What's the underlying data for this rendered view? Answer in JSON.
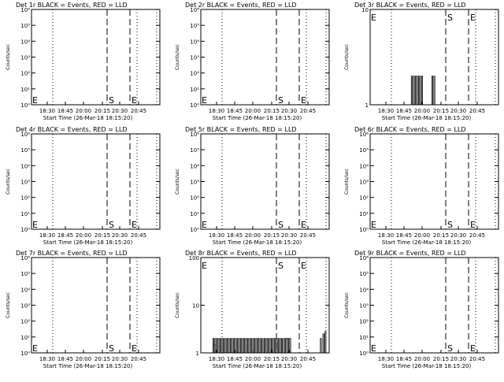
{
  "chart_data": [
    {
      "type": "line",
      "title": "Det 1r BLACK = Events, RED = LLD",
      "ylabel": "Counts/sec",
      "xlabel": "Start Time (26-Mar-18 18:15:20)",
      "x_tick_labels": [
        "18:30",
        "18:45",
        "20:00",
        "20:15",
        "20:30",
        "20:45"
      ],
      "y_scale": "log",
      "ylim": [
        1,
        1000000
      ],
      "y_tick_labels": [
        "10⁰",
        "10¹",
        "10²",
        "10³",
        "10⁴",
        "10⁵",
        "10⁶"
      ],
      "markers": [
        "E",
        "S",
        "E"
      ],
      "series": []
    },
    {
      "type": "line",
      "title": "Det 2r BLACK = Events, RED = LLD",
      "ylabel": "Counts/sec",
      "xlabel": "Start Time (26-Mar-18 18:15:20)",
      "x_tick_labels": [
        "18:30",
        "18:45",
        "20:00",
        "20:15",
        "20:30",
        "20:45"
      ],
      "y_scale": "log",
      "ylim": [
        1,
        1000000
      ],
      "y_tick_labels": [
        "10⁰",
        "10¹",
        "10²",
        "10³",
        "10⁴",
        "10⁵",
        "10⁶"
      ],
      "markers": [
        "E",
        "S",
        "E"
      ],
      "series": []
    },
    {
      "type": "line",
      "title": "Det 3r BLACK = Events, RED = LLD",
      "ylabel": "Counts/sec",
      "xlabel": "Start Time (26-Mar-18 18:15:20)",
      "x_tick_labels": [
        "18:30",
        "18:45",
        "20:00",
        "20:15",
        "20:30",
        "20:45"
      ],
      "y_scale": "log",
      "ylim": [
        1,
        10
      ],
      "y_tick_labels": [
        "1",
        "10"
      ],
      "markers": [
        "E",
        "S",
        "E"
      ],
      "series": [
        {
          "events": [
            [
              20.02,
              2
            ],
            [
              20.04,
              1
            ],
            [
              20.06,
              2
            ],
            [
              20.08,
              1
            ],
            [
              20.1,
              2
            ],
            [
              20.12,
              1
            ],
            [
              20.14,
              2
            ],
            [
              20.16,
              1
            ],
            [
              20.18,
              2
            ],
            [
              20.2,
              1
            ],
            [
              20.22,
              2
            ],
            [
              20.24,
              1
            ],
            [
              20.38,
              1
            ],
            [
              20.42,
              2
            ],
            [
              20.46,
              2
            ]
          ]
        }
      ]
    },
    {
      "type": "line",
      "title": "Det 4r BLACK = Events, RED = LLD",
      "ylabel": "Counts/sec",
      "xlabel": "Start Time (26-Mar-18 18:15:20)",
      "x_tick_labels": [
        "18:30",
        "18:45",
        "20:00",
        "20:15",
        "20:30",
        "20:45"
      ],
      "y_scale": "log",
      "ylim": [
        1,
        1000000
      ],
      "y_tick_labels": [
        "10⁰",
        "10¹",
        "10²",
        "10³",
        "10⁴",
        "10⁵",
        "10⁶"
      ],
      "markers": [
        "E",
        "S",
        "E"
      ],
      "series": []
    },
    {
      "type": "line",
      "title": "Det 5r BLACK = Events, RED = LLD",
      "ylabel": "Counts/sec",
      "xlabel": "Start Time (26-Mar-18 18:15:20)",
      "x_tick_labels": [
        "18:30",
        "18:45",
        "20:00",
        "20:15",
        "20:30",
        "20:45"
      ],
      "y_scale": "log",
      "ylim": [
        1,
        1000000
      ],
      "y_tick_labels": [
        "10⁰",
        "10¹",
        "10²",
        "10³",
        "10⁴",
        "10⁵",
        "10⁶"
      ],
      "markers": [
        "E",
        "S",
        "E"
      ],
      "series": []
    },
    {
      "type": "line",
      "title": "Det 6r BLACK = Events, RED = LLD",
      "ylabel": "Counts/sec",
      "xlabel": "Start Time (26-Mar-18 18:15:20)",
      "x_tick_labels": [
        "18:30",
        "18:45",
        "20:00",
        "20:15",
        "20:30",
        "20:45"
      ],
      "y_scale": "log",
      "ylim": [
        1,
        1000000
      ],
      "y_tick_labels": [
        "10⁰",
        "10¹",
        "10²",
        "10³",
        "10⁴",
        "10⁵",
        "10⁶"
      ],
      "markers": [
        "E",
        "S",
        "E"
      ],
      "series": []
    },
    {
      "type": "line",
      "title": "Det 7r BLACK = Events, RED = LLD",
      "ylabel": "Counts/sec",
      "xlabel": "Start Time (26-Mar-18 18:15:20)",
      "x_tick_labels": [
        "18:30",
        "18:45",
        "20:00",
        "20:15",
        "20:30",
        "20:45"
      ],
      "y_scale": "log",
      "ylim": [
        1,
        1000000
      ],
      "y_tick_labels": [
        "10⁰",
        "10¹",
        "10²",
        "10³",
        "10⁴",
        "10⁵",
        "10⁶"
      ],
      "markers": [
        "E",
        "S",
        "E"
      ],
      "series": []
    },
    {
      "type": "line",
      "title": "Det 8r BLACK = Events, RED = LLD",
      "ylabel": "Counts/sec",
      "xlabel": "Start Time (26-Mar-18 18:15:20)",
      "x_tick_labels": [
        "18:30",
        "18:45",
        "20:00",
        "20:15",
        "20:30",
        "20:45"
      ],
      "y_scale": "log",
      "ylim": [
        1,
        100
      ],
      "y_tick_labels": [
        "1",
        "10",
        "100"
      ],
      "markers": [
        "E",
        "S",
        "E"
      ],
      "series": [
        {
          "events": [
            [
              19.45,
              2
            ],
            [
              19.47,
              1.5
            ],
            [
              19.49,
              2
            ],
            [
              19.51,
              1
            ],
            [
              19.53,
              2
            ],
            [
              19.55,
              1
            ],
            [
              19.57,
              2
            ],
            [
              19.59,
              1
            ],
            [
              19.61,
              2
            ],
            [
              19.63,
              1
            ],
            [
              19.65,
              2
            ],
            [
              19.67,
              1
            ],
            [
              19.69,
              2
            ],
            [
              19.71,
              1
            ],
            [
              19.73,
              2
            ],
            [
              19.75,
              1
            ],
            [
              19.77,
              2
            ],
            [
              19.79,
              1
            ],
            [
              19.81,
              2
            ],
            [
              19.83,
              1
            ],
            [
              19.85,
              2
            ],
            [
              19.87,
              1
            ],
            [
              19.89,
              2
            ],
            [
              19.91,
              1
            ],
            [
              19.93,
              2
            ],
            [
              19.95,
              1
            ],
            [
              19.97,
              2
            ],
            [
              19.99,
              1
            ],
            [
              20.01,
              2
            ],
            [
              20.03,
              1
            ],
            [
              20.05,
              2
            ],
            [
              20.07,
              1
            ],
            [
              20.09,
              2
            ],
            [
              20.11,
              1
            ],
            [
              20.13,
              2
            ],
            [
              20.15,
              1
            ],
            [
              20.17,
              2
            ],
            [
              20.19,
              1
            ],
            [
              20.21,
              2
            ],
            [
              20.23,
              1
            ],
            [
              20.25,
              2
            ],
            [
              20.27,
              1
            ],
            [
              20.29,
              2
            ],
            [
              20.31,
              1
            ],
            [
              20.33,
              2
            ],
            [
              20.35,
              1
            ],
            [
              20.37,
              2
            ],
            [
              20.39,
              1
            ],
            [
              20.41,
              2
            ],
            [
              20.43,
              1
            ],
            [
              20.45,
              2
            ],
            [
              20.47,
              1
            ],
            [
              20.49,
              2
            ],
            [
              20.51,
              1
            ],
            [
              20.53,
              2
            ],
            [
              20.55,
              1
            ],
            [
              20.57,
              2
            ],
            [
              20.59,
              1
            ],
            [
              20.61,
              2
            ],
            [
              20.63,
              1
            ],
            [
              20.65,
              2
            ],
            [
              20.67,
              1
            ],
            [
              20.69,
              2
            ],
            [
              20.71,
              1
            ],
            [
              20.73,
              2
            ],
            [
              20.75,
              1
            ],
            [
              20.77,
              2
            ],
            [
              20.79,
              1
            ],
            [
              20.81,
              2
            ],
            [
              20.83,
              1
            ],
            [
              20.85,
              2
            ],
            [
              20.87,
              2
            ],
            [
              20.89,
              2
            ],
            [
              20.91,
              2
            ],
            [
              20.93,
              2
            ],
            [
              20.95,
              2
            ],
            [
              21.55,
              2
            ],
            [
              21.6,
              2.5
            ],
            [
              21.64,
              2.8
            ]
          ]
        }
      ]
    },
    {
      "type": "line",
      "title": "Det 9r BLACK = Events, RED = LLD",
      "ylabel": "Counts/sec",
      "xlabel": "Start Time (26-Mar-18 18:15:20)",
      "x_tick_labels": [
        "18:30",
        "18:45",
        "20:00",
        "20:15",
        "20:30",
        "20:45"
      ],
      "y_scale": "log",
      "ylim": [
        1,
        1000000
      ],
      "y_tick_labels": [
        "10⁰",
        "10¹",
        "10²",
        "10³",
        "10⁴",
        "10⁵",
        "10⁶"
      ],
      "markers": [
        "E",
        "S",
        "E"
      ],
      "series": []
    }
  ]
}
